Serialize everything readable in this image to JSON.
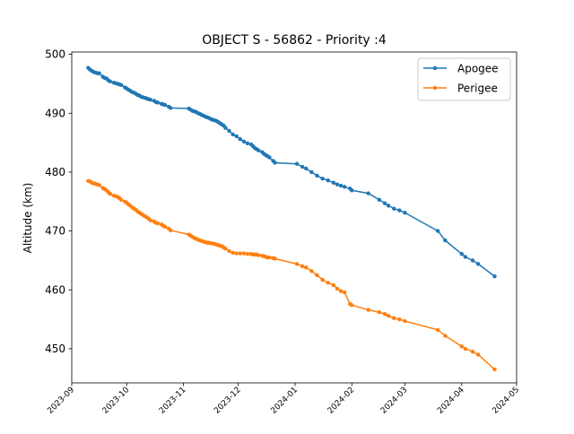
{
  "chart_data": {
    "type": "line",
    "title": "OBJECT S - 56862 - Priority :4",
    "xlabel": "",
    "ylabel": "Altitude (km)",
    "xlim": [
      "2023-09-01",
      "2024-05-01"
    ],
    "ylim": [
      444.2,
      500.4
    ],
    "y_ticks": [
      450,
      460,
      470,
      480,
      490,
      500
    ],
    "x_ticks": [
      "2023-09-01",
      "2023-10-01",
      "2023-11-01",
      "2023-12-01",
      "2024-01-01",
      "2024-02-01",
      "2024-03-01",
      "2024-04-01",
      "2024-05-01"
    ],
    "x_tick_labels": [
      "2023-09",
      "2023-10",
      "2023-11",
      "2023-12",
      "2024-01",
      "2024-02",
      "2024-03",
      "2024-04",
      "2024-05"
    ],
    "grid": false,
    "legend_position": "top-right",
    "series": [
      {
        "name": "Apogee",
        "color": "#1f77b4",
        "x": [
          "2023-09-10",
          "2023-09-11",
          "2023-09-12",
          "2023-09-13",
          "2023-09-14",
          "2023-09-15",
          "2023-09-16",
          "2023-09-18",
          "2023-09-19",
          "2023-09-20",
          "2023-09-21",
          "2023-09-22",
          "2023-09-24",
          "2023-09-25",
          "2023-09-26",
          "2023-09-27",
          "2023-09-28",
          "2023-09-30",
          "2023-10-01",
          "2023-10-02",
          "2023-10-03",
          "2023-10-04",
          "2023-10-05",
          "2023-10-06",
          "2023-10-07",
          "2023-10-08",
          "2023-10-09",
          "2023-10-10",
          "2023-10-11",
          "2023-10-12",
          "2023-10-13",
          "2023-10-14",
          "2023-10-16",
          "2023-10-17",
          "2023-10-18",
          "2023-10-20",
          "2023-10-21",
          "2023-10-22",
          "2023-10-24",
          "2023-10-25",
          "2023-11-04",
          "2023-11-05",
          "2023-11-06",
          "2023-11-07",
          "2023-11-08",
          "2023-11-09",
          "2023-11-10",
          "2023-11-11",
          "2023-11-12",
          "2023-11-13",
          "2023-11-14",
          "2023-11-15",
          "2023-11-16",
          "2023-11-17",
          "2023-11-18",
          "2023-11-19",
          "2023-11-20",
          "2023-11-21",
          "2023-11-22",
          "2023-11-23",
          "2023-11-24",
          "2023-11-26",
          "2023-11-28",
          "2023-11-30",
          "2023-12-02",
          "2023-12-04",
          "2023-12-06",
          "2023-12-08",
          "2023-12-09",
          "2023-12-10",
          "2023-12-11",
          "2023-12-12",
          "2023-12-14",
          "2023-12-15",
          "2023-12-16",
          "2023-12-17",
          "2023-12-18",
          "2023-12-20",
          "2023-12-21",
          "2024-01-02",
          "2024-01-05",
          "2024-01-07",
          "2024-01-10",
          "2024-01-13",
          "2024-01-16",
          "2024-01-19",
          "2024-01-22",
          "2024-01-24",
          "2024-01-26",
          "2024-01-28",
          "2024-01-31",
          "2024-02-01",
          "2024-02-10",
          "2024-02-16",
          "2024-02-19",
          "2024-02-21",
          "2024-02-24",
          "2024-02-27",
          "2024-03-01",
          "2024-03-19",
          "2024-03-23",
          "2024-04-01",
          "2024-04-03",
          "2024-04-07",
          "2024-04-10",
          "2024-04-19"
        ],
        "y": [
          497.7,
          497.4,
          497.2,
          497.0,
          496.9,
          496.8,
          496.8,
          496.2,
          496.0,
          495.9,
          495.6,
          495.4,
          495.2,
          495.1,
          495.0,
          494.9,
          494.8,
          494.4,
          494.2,
          494.0,
          493.8,
          493.6,
          493.5,
          493.3,
          493.1,
          493.0,
          492.8,
          492.7,
          492.6,
          492.5,
          492.4,
          492.3,
          492.1,
          491.9,
          491.8,
          491.6,
          491.5,
          491.4,
          491.1,
          490.9,
          490.8,
          490.6,
          490.4,
          490.3,
          490.2,
          490.0,
          489.9,
          489.7,
          489.6,
          489.4,
          489.3,
          489.2,
          489.0,
          488.9,
          488.8,
          488.7,
          488.5,
          488.3,
          488.1,
          487.9,
          487.5,
          487.0,
          486.4,
          486.1,
          485.6,
          485.2,
          484.9,
          484.7,
          484.4,
          484.1,
          483.9,
          483.7,
          483.4,
          483.1,
          482.9,
          482.7,
          482.5,
          481.9,
          481.6,
          481.4,
          480.9,
          480.6,
          480.0,
          479.4,
          478.9,
          478.6,
          478.2,
          477.9,
          477.7,
          477.5,
          477.2,
          476.9,
          476.4,
          475.3,
          474.7,
          474.3,
          473.8,
          473.5,
          473.1,
          470.0,
          468.4,
          466.1,
          465.6,
          465.0,
          464.4,
          462.3
        ]
      },
      {
        "name": "Perigee",
        "color": "#ff7f0e",
        "x": [
          "2023-09-10",
          "2023-09-11",
          "2023-09-12",
          "2023-09-13",
          "2023-09-14",
          "2023-09-15",
          "2023-09-16",
          "2023-09-18",
          "2023-09-19",
          "2023-09-20",
          "2023-09-21",
          "2023-09-22",
          "2023-09-24",
          "2023-09-25",
          "2023-09-26",
          "2023-09-27",
          "2023-09-28",
          "2023-09-30",
          "2023-10-01",
          "2023-10-02",
          "2023-10-03",
          "2023-10-04",
          "2023-10-05",
          "2023-10-06",
          "2023-10-07",
          "2023-10-08",
          "2023-10-09",
          "2023-10-10",
          "2023-10-11",
          "2023-10-12",
          "2023-10-13",
          "2023-10-14",
          "2023-10-16",
          "2023-10-17",
          "2023-10-18",
          "2023-10-20",
          "2023-10-21",
          "2023-10-22",
          "2023-10-24",
          "2023-10-25",
          "2023-11-04",
          "2023-11-05",
          "2023-11-06",
          "2023-11-07",
          "2023-11-08",
          "2023-11-09",
          "2023-11-10",
          "2023-11-11",
          "2023-11-12",
          "2023-11-13",
          "2023-11-14",
          "2023-11-15",
          "2023-11-16",
          "2023-11-17",
          "2023-11-18",
          "2023-11-19",
          "2023-11-20",
          "2023-11-21",
          "2023-11-22",
          "2023-11-23",
          "2023-11-24",
          "2023-11-26",
          "2023-11-28",
          "2023-11-30",
          "2023-12-02",
          "2023-12-04",
          "2023-12-06",
          "2023-12-08",
          "2023-12-09",
          "2023-12-10",
          "2023-12-11",
          "2023-12-12",
          "2023-12-14",
          "2023-12-15",
          "2023-12-16",
          "2023-12-17",
          "2023-12-18",
          "2023-12-20",
          "2023-12-21",
          "2024-01-02",
          "2024-01-05",
          "2024-01-07",
          "2024-01-10",
          "2024-01-13",
          "2024-01-16",
          "2024-01-19",
          "2024-01-22",
          "2024-01-24",
          "2024-01-26",
          "2024-01-28",
          "2024-01-31",
          "2024-02-01",
          "2024-02-10",
          "2024-02-16",
          "2024-02-19",
          "2024-02-21",
          "2024-02-24",
          "2024-02-27",
          "2024-03-01",
          "2024-03-19",
          "2024-03-23",
          "2024-04-01",
          "2024-04-03",
          "2024-04-07",
          "2024-04-10",
          "2024-04-19"
        ],
        "y": [
          478.5,
          478.4,
          478.2,
          478.1,
          478.0,
          477.9,
          477.8,
          477.3,
          477.1,
          476.9,
          476.6,
          476.3,
          476.0,
          475.9,
          475.8,
          475.6,
          475.3,
          475.0,
          474.8,
          474.5,
          474.3,
          474.0,
          473.8,
          473.6,
          473.3,
          473.1,
          472.9,
          472.7,
          472.5,
          472.3,
          472.1,
          471.8,
          471.6,
          471.4,
          471.3,
          471.1,
          470.9,
          470.7,
          470.4,
          470.1,
          469.4,
          469.2,
          469.0,
          468.8,
          468.7,
          468.5,
          468.4,
          468.3,
          468.2,
          468.1,
          468.0,
          468.0,
          467.9,
          467.9,
          467.8,
          467.7,
          467.6,
          467.5,
          467.4,
          467.2,
          467.0,
          466.6,
          466.3,
          466.2,
          466.2,
          466.2,
          466.1,
          466.1,
          466.0,
          466.0,
          466.0,
          465.9,
          465.8,
          465.7,
          465.6,
          465.5,
          465.5,
          465.4,
          465.3,
          464.4,
          464.0,
          463.8,
          463.2,
          462.5,
          461.7,
          461.2,
          460.8,
          460.2,
          459.8,
          459.6,
          457.6,
          457.4,
          456.6,
          456.2,
          455.9,
          455.6,
          455.2,
          455.0,
          454.7,
          453.2,
          452.2,
          450.4,
          450.0,
          449.5,
          449.0,
          446.5
        ]
      }
    ]
  }
}
